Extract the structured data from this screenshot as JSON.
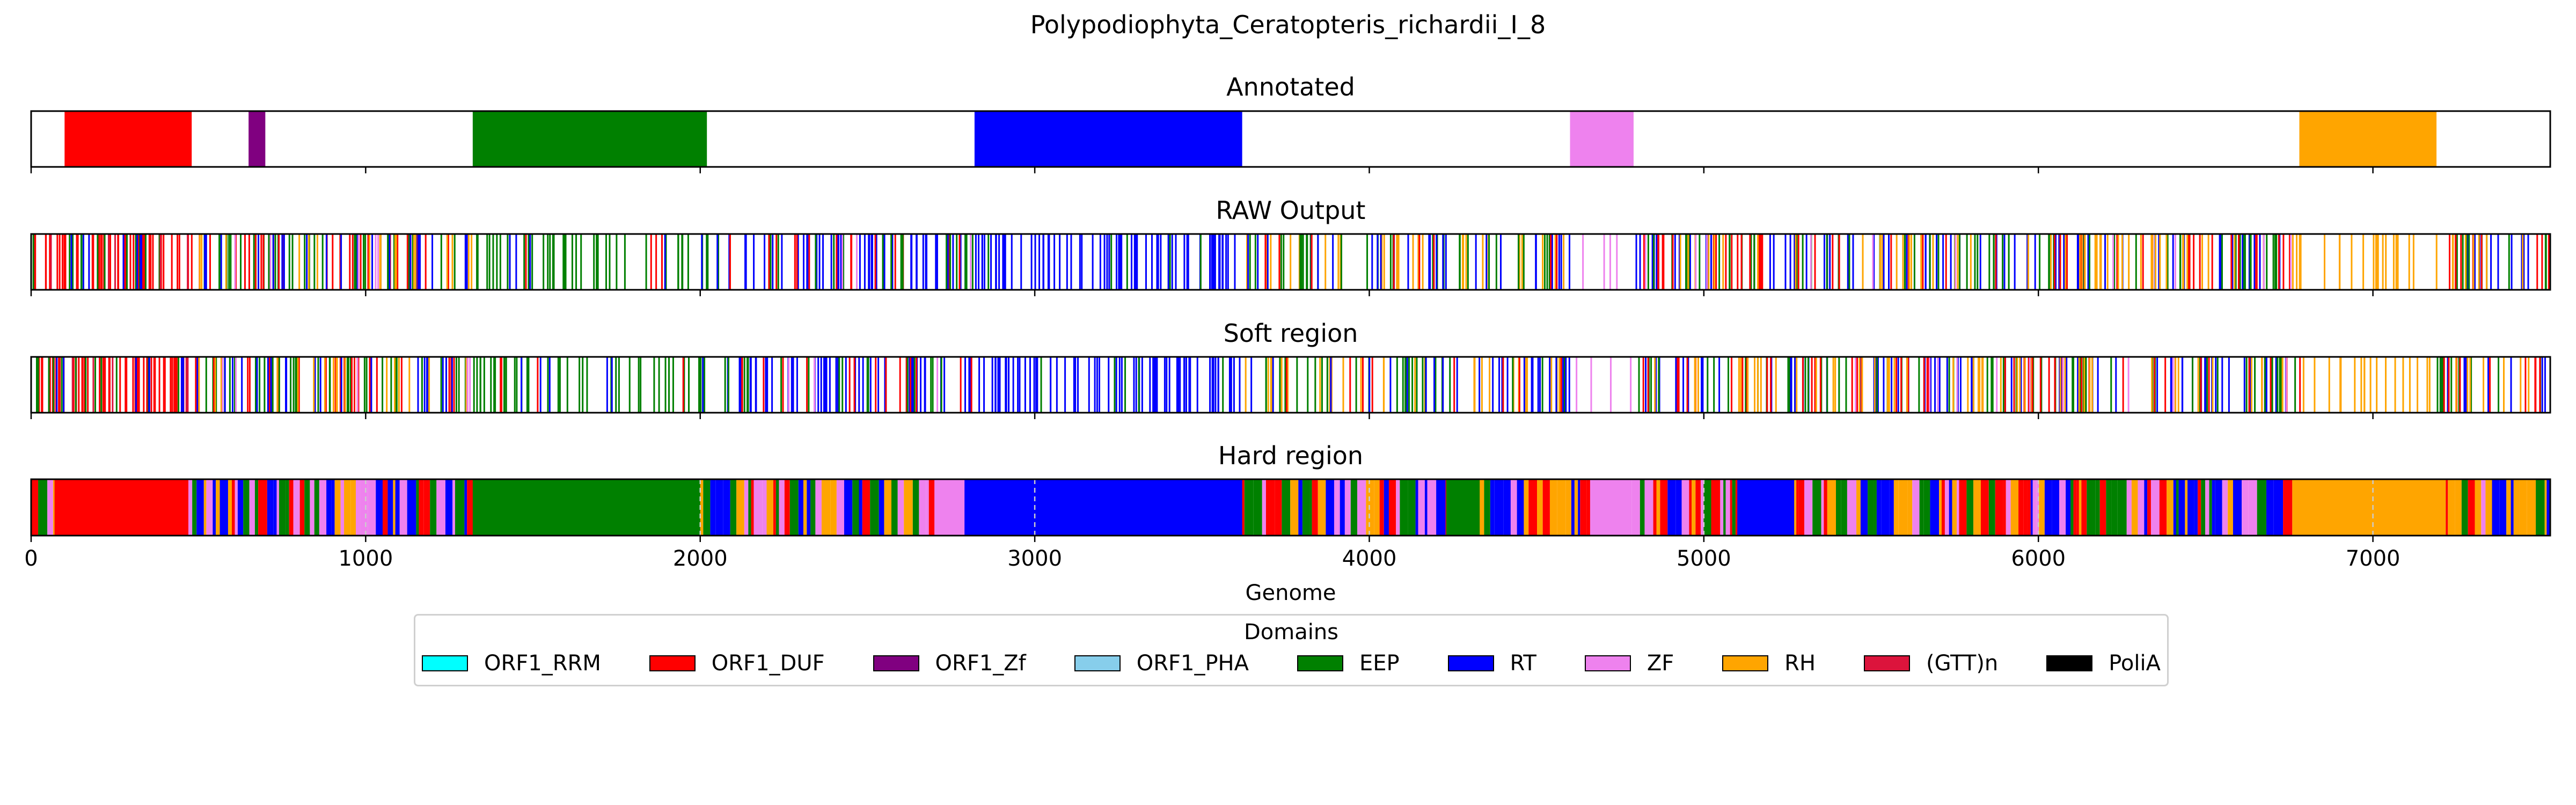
{
  "chart_data": {
    "type": "genome_track",
    "title": "Polypodiophyta_Ceratopteris_richardii_I_8",
    "xlabel": "Genome",
    "xlim": [
      0,
      7530
    ],
    "xticks": [
      0,
      1000,
      2000,
      3000,
      4000,
      5000,
      6000,
      7000
    ],
    "xtick_labels": [
      "0",
      "1000",
      "2000",
      "3000",
      "4000",
      "5000",
      "6000",
      "7000"
    ],
    "legend": {
      "title": "Domains",
      "placement": "bottom-center",
      "items": [
        {
          "name": "ORF1_RRM",
          "color": "#00ffff"
        },
        {
          "name": "ORF1_DUF",
          "color": "#ff0000"
        },
        {
          "name": "ORF1_Zf",
          "color": "#800080"
        },
        {
          "name": "ORF1_PHA",
          "color": "#87ceeb"
        },
        {
          "name": "EEP",
          "color": "#008000"
        },
        {
          "name": "RT",
          "color": "#0000ff"
        },
        {
          "name": "ZF",
          "color": "#ee82ee"
        },
        {
          "name": "RH",
          "color": "#ffa500"
        },
        {
          "name": "(GTT)n",
          "color": "#dc143c"
        },
        {
          "name": "PoliA",
          "color": "#000000"
        }
      ]
    },
    "panels": [
      {
        "title": "Annotated",
        "kind": "blocks",
        "segments": [
          {
            "domain": "ORF1_DUF",
            "start": 100,
            "end": 480
          },
          {
            "domain": "ORF1_Zf",
            "start": 650,
            "end": 700
          },
          {
            "domain": "EEP",
            "start": 1320,
            "end": 2020
          },
          {
            "domain": "RT",
            "start": 2820,
            "end": 3620
          },
          {
            "domain": "ZF",
            "start": 4600,
            "end": 4790
          },
          {
            "domain": "RH",
            "start": 6780,
            "end": 7190
          }
        ]
      },
      {
        "title": "RAW Output",
        "kind": "lines",
        "segments": [
          {
            "domain": "ORF1_DUF",
            "start": 0,
            "end": 480,
            "density": 0.11
          },
          {
            "domain": "EEP",
            "start": 0,
            "end": 480,
            "density": 0.025
          },
          {
            "domain": "RT",
            "start": 0,
            "end": 480,
            "density": 0.015
          },
          {
            "domain": "(GTT)n",
            "start": 0,
            "end": 480,
            "density": 0.01
          },
          {
            "domain": "EEP",
            "start": 480,
            "end": 1320,
            "density": 0.045
          },
          {
            "domain": "ORF1_DUF",
            "start": 480,
            "end": 1320,
            "density": 0.03
          },
          {
            "domain": "RT",
            "start": 480,
            "end": 1320,
            "density": 0.025
          },
          {
            "domain": "RH",
            "start": 480,
            "end": 1320,
            "density": 0.02
          },
          {
            "domain": "ZF",
            "start": 480,
            "end": 1320,
            "density": 0.006
          },
          {
            "domain": "EEP",
            "start": 1320,
            "end": 2080,
            "density": 0.055
          },
          {
            "domain": "RT",
            "start": 1320,
            "end": 2080,
            "density": 0.008
          },
          {
            "domain": "ORF1_DUF",
            "start": 1320,
            "end": 2080,
            "density": 0.005
          },
          {
            "domain": "RT",
            "start": 2080,
            "end": 2820,
            "density": 0.06
          },
          {
            "domain": "ORF1_DUF",
            "start": 2080,
            "end": 2820,
            "density": 0.02
          },
          {
            "domain": "EEP",
            "start": 2080,
            "end": 2820,
            "density": 0.02
          },
          {
            "domain": "ZF",
            "start": 2080,
            "end": 2820,
            "density": 0.004
          },
          {
            "domain": "RT",
            "start": 2820,
            "end": 3620,
            "density": 0.085
          },
          {
            "domain": "EEP",
            "start": 2820,
            "end": 3620,
            "density": 0.006
          },
          {
            "domain": "RH",
            "start": 3620,
            "end": 4600,
            "density": 0.03
          },
          {
            "domain": "EEP",
            "start": 3620,
            "end": 4600,
            "density": 0.03
          },
          {
            "domain": "RT",
            "start": 3620,
            "end": 4600,
            "density": 0.025
          },
          {
            "domain": "ORF1_DUF",
            "start": 3620,
            "end": 4600,
            "density": 0.008
          },
          {
            "domain": "ZF",
            "start": 4600,
            "end": 4790,
            "density": 0.02
          },
          {
            "domain": "RT",
            "start": 4790,
            "end": 6780,
            "density": 0.035
          },
          {
            "domain": "EEP",
            "start": 4790,
            "end": 6780,
            "density": 0.03
          },
          {
            "domain": "ORF1_DUF",
            "start": 4790,
            "end": 6780,
            "density": 0.025
          },
          {
            "domain": "RH",
            "start": 4790,
            "end": 6780,
            "density": 0.025
          },
          {
            "domain": "ZF",
            "start": 4790,
            "end": 6780,
            "density": 0.005
          },
          {
            "domain": "RH",
            "start": 6780,
            "end": 7190,
            "density": 0.045
          },
          {
            "domain": "RT",
            "start": 7190,
            "end": 7530,
            "density": 0.03
          },
          {
            "domain": "EEP",
            "start": 7190,
            "end": 7530,
            "density": 0.025
          },
          {
            "domain": "ORF1_DUF",
            "start": 7190,
            "end": 7530,
            "density": 0.025
          },
          {
            "domain": "RH",
            "start": 7190,
            "end": 7530,
            "density": 0.02
          }
        ]
      },
      {
        "title": "Soft region",
        "kind": "lines",
        "segments": [
          {
            "domain": "ORF1_DUF",
            "start": 0,
            "end": 480,
            "density": 0.11
          },
          {
            "domain": "EEP",
            "start": 0,
            "end": 480,
            "density": 0.025
          },
          {
            "domain": "RT",
            "start": 0,
            "end": 480,
            "density": 0.015
          },
          {
            "domain": "(GTT)n",
            "start": 0,
            "end": 480,
            "density": 0.01
          },
          {
            "domain": "EEP",
            "start": 480,
            "end": 1320,
            "density": 0.045
          },
          {
            "domain": "ORF1_DUF",
            "start": 480,
            "end": 1320,
            "density": 0.03
          },
          {
            "domain": "RT",
            "start": 480,
            "end": 1320,
            "density": 0.025
          },
          {
            "domain": "RH",
            "start": 480,
            "end": 1320,
            "density": 0.02
          },
          {
            "domain": "ZF",
            "start": 480,
            "end": 1320,
            "density": 0.006
          },
          {
            "domain": "EEP",
            "start": 1320,
            "end": 2080,
            "density": 0.055
          },
          {
            "domain": "RT",
            "start": 1320,
            "end": 2080,
            "density": 0.008
          },
          {
            "domain": "ORF1_DUF",
            "start": 1320,
            "end": 2080,
            "density": 0.005
          },
          {
            "domain": "RT",
            "start": 2080,
            "end": 2820,
            "density": 0.06
          },
          {
            "domain": "ORF1_DUF",
            "start": 2080,
            "end": 2820,
            "density": 0.02
          },
          {
            "domain": "EEP",
            "start": 2080,
            "end": 2820,
            "density": 0.02
          },
          {
            "domain": "ZF",
            "start": 2080,
            "end": 2820,
            "density": 0.004
          },
          {
            "domain": "RT",
            "start": 2820,
            "end": 3620,
            "density": 0.085
          },
          {
            "domain": "EEP",
            "start": 2820,
            "end": 3620,
            "density": 0.006
          },
          {
            "domain": "RH",
            "start": 3620,
            "end": 4600,
            "density": 0.03
          },
          {
            "domain": "EEP",
            "start": 3620,
            "end": 4600,
            "density": 0.03
          },
          {
            "domain": "RT",
            "start": 3620,
            "end": 4600,
            "density": 0.025
          },
          {
            "domain": "ORF1_DUF",
            "start": 3620,
            "end": 4600,
            "density": 0.008
          },
          {
            "domain": "ZF",
            "start": 4600,
            "end": 4790,
            "density": 0.02
          },
          {
            "domain": "RT",
            "start": 4790,
            "end": 6780,
            "density": 0.035
          },
          {
            "domain": "EEP",
            "start": 4790,
            "end": 6780,
            "density": 0.03
          },
          {
            "domain": "ORF1_DUF",
            "start": 4790,
            "end": 6780,
            "density": 0.025
          },
          {
            "domain": "RH",
            "start": 4790,
            "end": 6780,
            "density": 0.025
          },
          {
            "domain": "ZF",
            "start": 4790,
            "end": 6780,
            "density": 0.005
          },
          {
            "domain": "RH",
            "start": 6780,
            "end": 7190,
            "density": 0.045
          },
          {
            "domain": "RT",
            "start": 7190,
            "end": 7530,
            "density": 0.03
          },
          {
            "domain": "EEP",
            "start": 7190,
            "end": 7530,
            "density": 0.025
          },
          {
            "domain": "ORF1_DUF",
            "start": 7190,
            "end": 7530,
            "density": 0.025
          },
          {
            "domain": "RH",
            "start": 7190,
            "end": 7530,
            "density": 0.02
          }
        ]
      },
      {
        "title": "Hard region",
        "kind": "blocks",
        "background_mix": {
          "start": 0,
          "end": 7530,
          "domains": [
            "EEP",
            "RT",
            "ORF1_DUF",
            "RH",
            "ZF"
          ]
        },
        "segments": [
          {
            "domain": "ORF1_DUF",
            "start": 70,
            "end": 470
          },
          {
            "domain": "EEP",
            "start": 1320,
            "end": 2000
          },
          {
            "domain": "ZF",
            "start": 2700,
            "end": 2780
          },
          {
            "domain": "RT",
            "start": 2790,
            "end": 3620
          },
          {
            "domain": "EEP",
            "start": 4230,
            "end": 4330
          },
          {
            "domain": "ZF",
            "start": 4660,
            "end": 4780
          },
          {
            "domain": "RT",
            "start": 5100,
            "end": 5270
          },
          {
            "domain": "RH",
            "start": 6780,
            "end": 7200
          }
        ],
        "dashed_lines_x": [
          1000,
          2000,
          3000,
          4000,
          5000,
          6000,
          7000
        ]
      }
    ]
  }
}
